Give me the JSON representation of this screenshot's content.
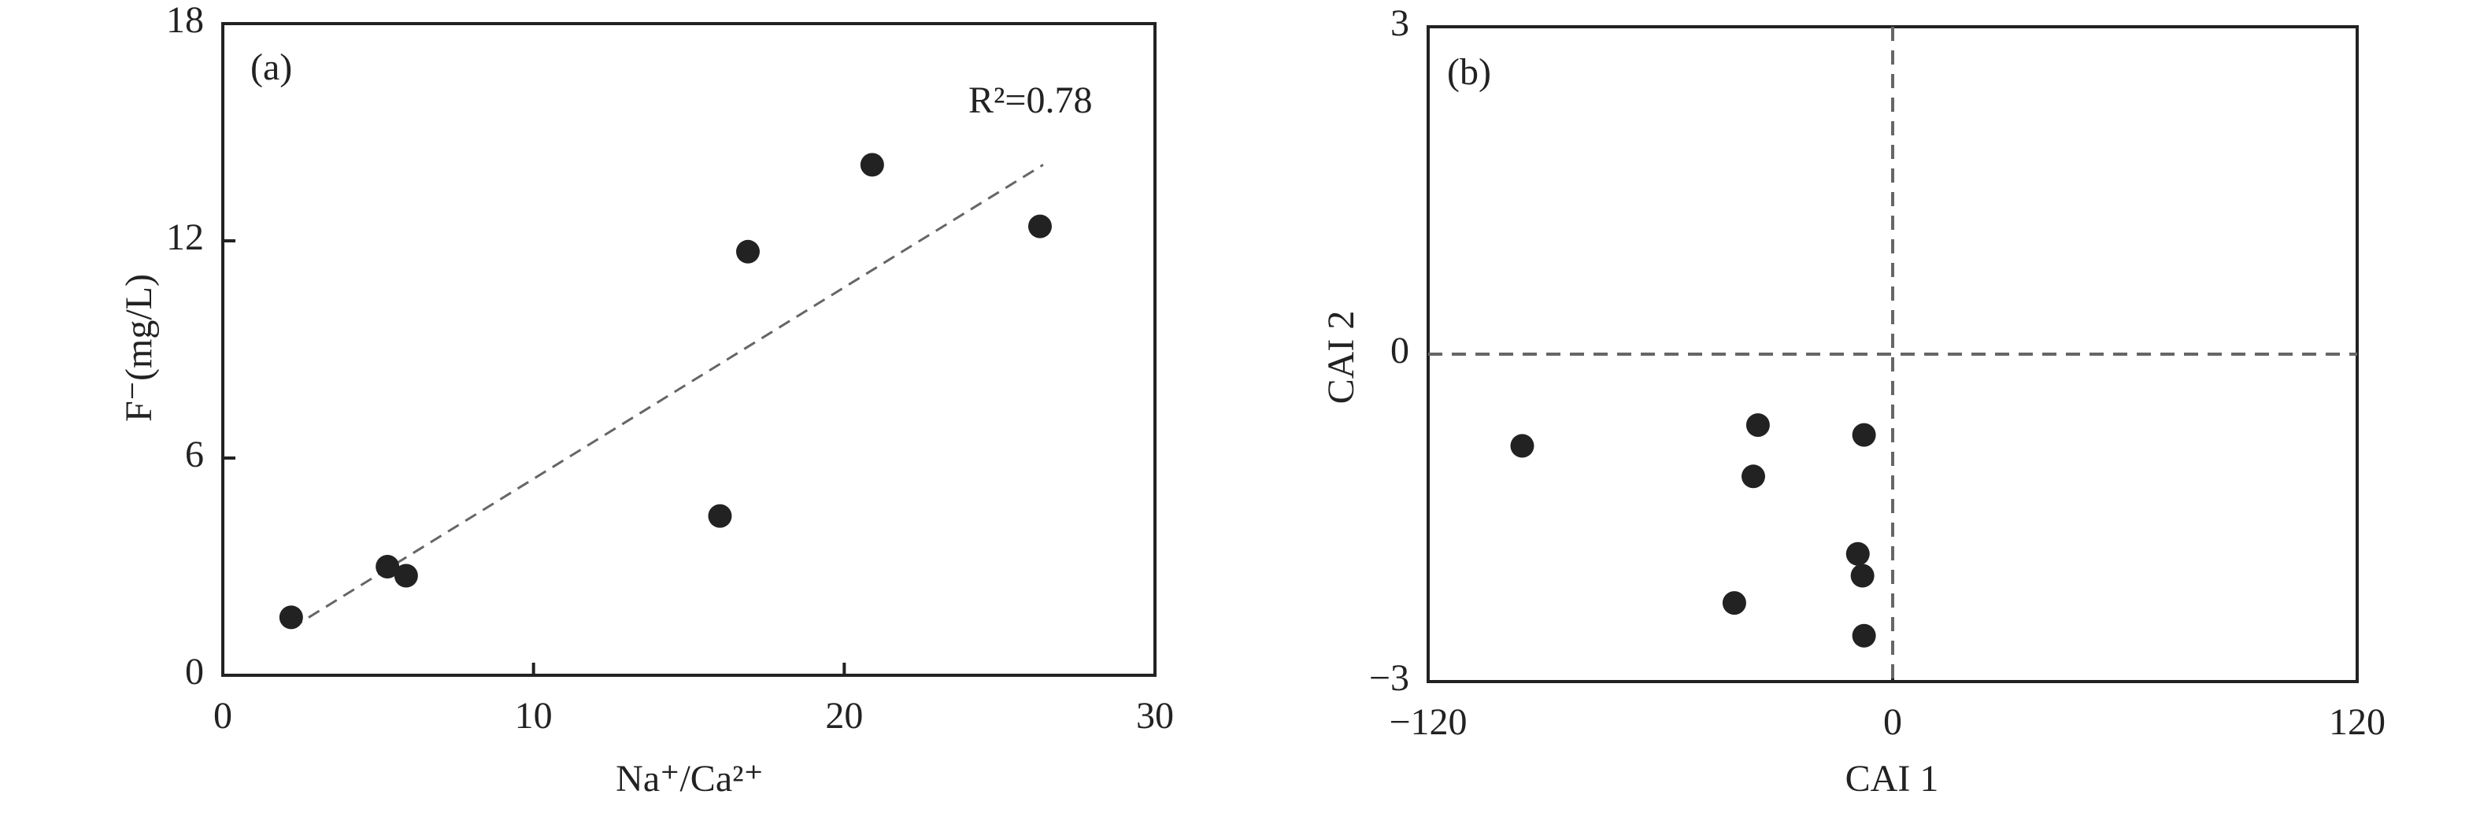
{
  "chart_data": [
    {
      "type": "scatter",
      "panel_label": "(a)",
      "x_label": "Na⁺/Ca²⁺",
      "y_label": "F⁻(mg/L)",
      "annotation": "R²=0.78",
      "x": [
        2.2,
        5.3,
        5.9,
        16.0,
        16.9,
        20.9,
        26.3
      ],
      "values": [
        1.6,
        3.0,
        2.75,
        4.4,
        11.7,
        14.1,
        12.4
      ],
      "color": "#222222",
      "trendline": {
        "x": [
          2.2,
          26.4
        ],
        "values": [
          1.3,
          14.1
        ],
        "color": "#666666"
      },
      "xlim": [
        0,
        30
      ],
      "xticks": [
        0,
        10,
        20,
        30
      ],
      "ylim": [
        0,
        18
      ],
      "yticks": [
        0,
        6,
        12,
        18
      ]
    },
    {
      "type": "scatter",
      "panel_label": "(b)",
      "x_label": "CAI 1",
      "y_label": "CAI 2",
      "x": [
        -95.7,
        -34.8,
        -7.4,
        -36.0,
        -9.0,
        -7.8,
        -40.9,
        -7.4
      ],
      "values": [
        -0.84,
        -0.65,
        -0.74,
        -1.12,
        -1.83,
        -2.03,
        -2.28,
        -2.58
      ],
      "color": "#222222",
      "hlines": [
        0
      ],
      "vlines": [
        0
      ],
      "ref_color": "#666666",
      "xlim": [
        -120,
        120
      ],
      "xticks": [
        {
          "value": -120,
          "label": "−120"
        },
        0,
        120
      ],
      "ylim": [
        -3,
        3
      ],
      "yticks": [
        {
          "value": -3,
          "label": "−3"
        },
        0,
        3
      ]
    }
  ]
}
